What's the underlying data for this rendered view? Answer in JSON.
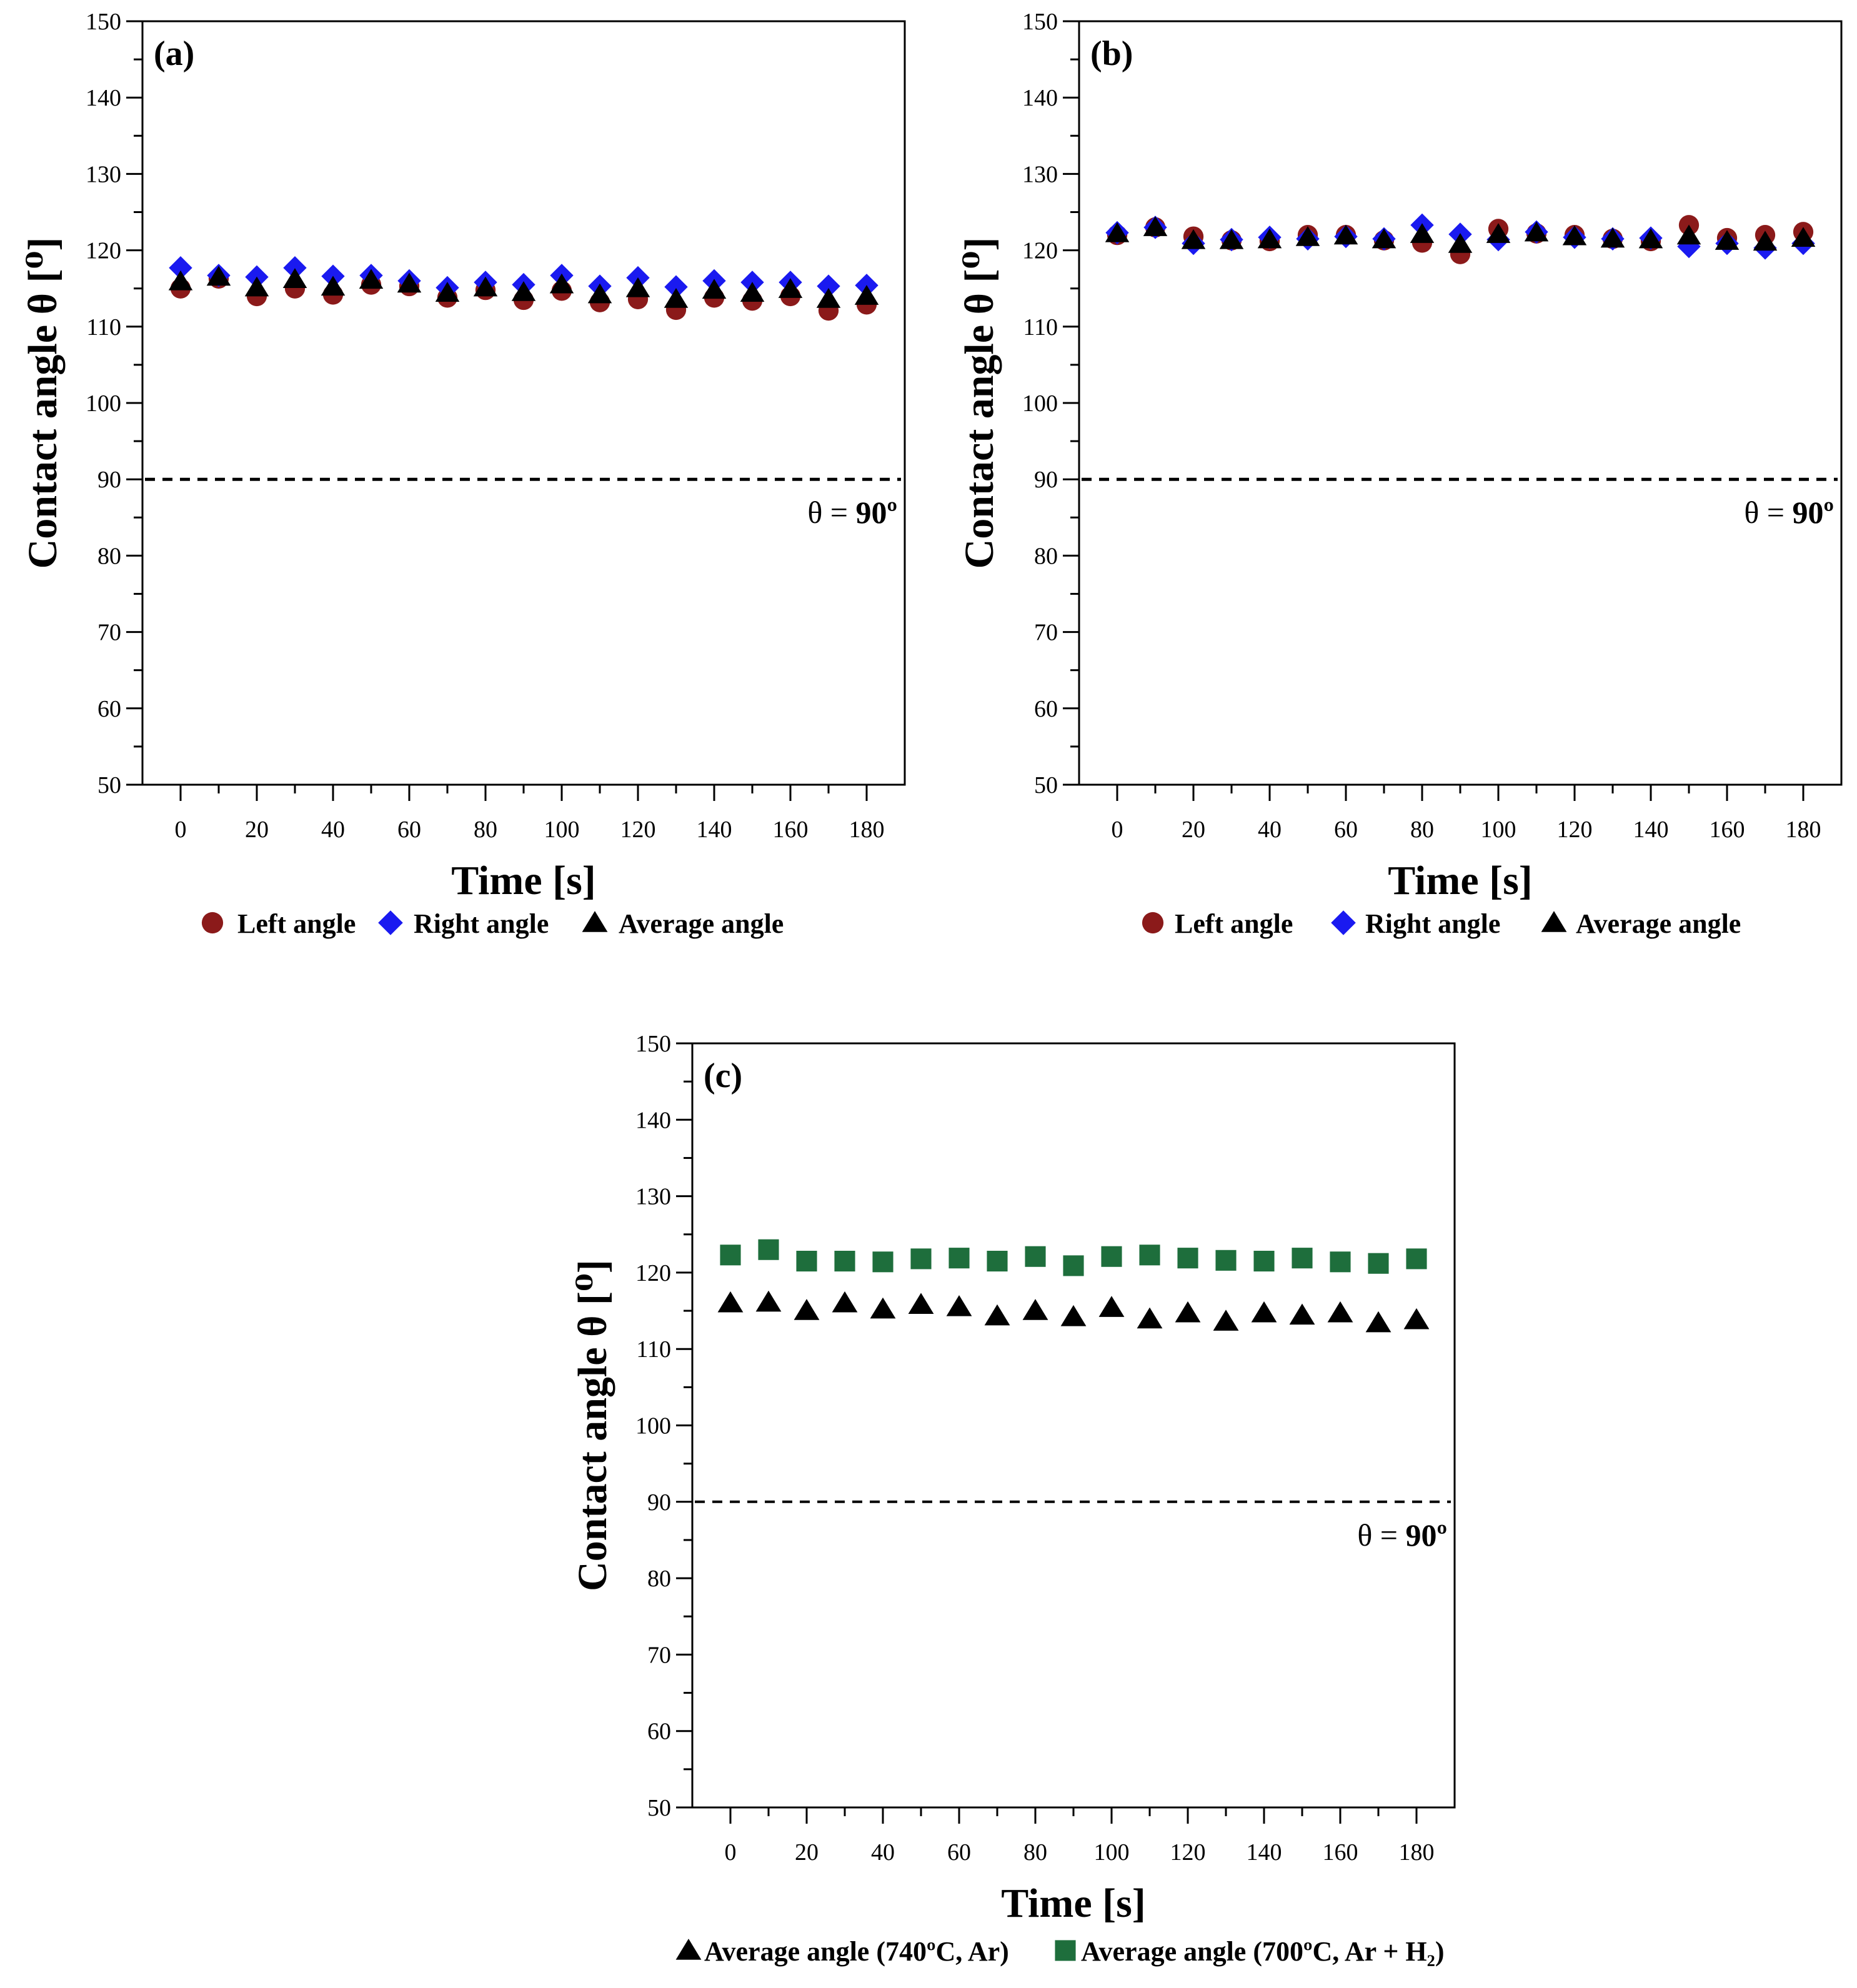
{
  "chart_data": [
    {
      "panel_label": "(a)",
      "type": "scatter",
      "xlabel": "Time [s]",
      "ylabel": "Contact angle θ [⁰]",
      "xlim": [
        -10,
        190
      ],
      "ylim": [
        50,
        150
      ],
      "xticks": [
        0,
        20,
        40,
        60,
        80,
        100,
        120,
        140,
        160,
        180
      ],
      "yticks": [
        50,
        60,
        70,
        80,
        90,
        100,
        110,
        120,
        130,
        140,
        150
      ],
      "reference_line": {
        "y": 90,
        "label_prefix": "θ = ",
        "label_value": "90º"
      },
      "x": [
        0,
        10,
        20,
        30,
        40,
        50,
        60,
        70,
        80,
        90,
        100,
        110,
        120,
        130,
        140,
        150,
        160,
        170,
        180
      ],
      "series": [
        {
          "name": "Left angle",
          "marker": "circle",
          "color": "#8B1A1A",
          "values": [
            115,
            116.3,
            114,
            115,
            114.2,
            115.5,
            115.3,
            113.8,
            114.8,
            113.5,
            114.7,
            113.2,
            113.6,
            112.2,
            113.8,
            113.4,
            114,
            112.1,
            112.9
          ]
        },
        {
          "name": "Right angle",
          "marker": "diamond",
          "color": "#1A1AF0",
          "values": [
            117.7,
            116.7,
            116.5,
            117.7,
            116.6,
            116.7,
            116,
            115.1,
            115.8,
            115.5,
            116.7,
            115.3,
            116.4,
            115.2,
            116,
            115.8,
            115.8,
            115.3,
            115.4
          ]
        },
        {
          "name": "Average angle",
          "marker": "triangle",
          "color": "#000000",
          "values": [
            115.9,
            116.5,
            115.1,
            116.2,
            115.2,
            116.1,
            115.6,
            114.4,
            115.1,
            114.5,
            115.5,
            114.2,
            115,
            113.6,
            114.8,
            114.4,
            114.9,
            113.6,
            114
          ]
        }
      ]
    },
    {
      "panel_label": "(b)",
      "type": "scatter",
      "xlabel": "Time [s]",
      "ylabel": "Contact angle θ [⁰]",
      "xlim": [
        -10,
        190
      ],
      "ylim": [
        50,
        150
      ],
      "xticks": [
        0,
        20,
        40,
        60,
        80,
        100,
        120,
        140,
        160,
        180
      ],
      "yticks": [
        50,
        60,
        70,
        80,
        90,
        100,
        110,
        120,
        130,
        140,
        150
      ],
      "reference_line": {
        "y": 90,
        "label_prefix": "θ = ",
        "label_value": "90º"
      },
      "x": [
        0,
        10,
        20,
        30,
        40,
        50,
        60,
        70,
        80,
        90,
        100,
        110,
        120,
        130,
        140,
        150,
        160,
        170,
        180
      ],
      "series": [
        {
          "name": "Left angle",
          "marker": "circle",
          "color": "#8B1A1A",
          "values": [
            122,
            123,
            121.8,
            121.3,
            121.2,
            122,
            122,
            121.3,
            121,
            119.5,
            122.8,
            122.2,
            122,
            121.5,
            121.2,
            123.3,
            121.6,
            122,
            122.4
          ]
        },
        {
          "name": "Right angle",
          "marker": "diamond",
          "color": "#1A1AF0",
          "values": [
            122.3,
            123,
            120.9,
            121.4,
            121.7,
            121.5,
            121.8,
            121.5,
            123.3,
            122.1,
            121.4,
            122.4,
            121.7,
            121.5,
            121.6,
            120.5,
            120.9,
            120.3,
            120.9
          ]
        },
        {
          "name": "Average angle",
          "marker": "triangle",
          "color": "#000000",
          "values": [
            122.2,
            123,
            121.3,
            121.3,
            121.4,
            121.7,
            121.9,
            121.4,
            122.1,
            120.8,
            122.1,
            122.3,
            121.8,
            121.5,
            121.4,
            121.9,
            121.2,
            121.1,
            121.6
          ]
        }
      ]
    },
    {
      "panel_label": "(c)",
      "type": "scatter",
      "xlabel": "Time [s]",
      "ylabel": "Contact angle θ [⁰]",
      "xlim": [
        -10,
        190
      ],
      "ylim": [
        50,
        150
      ],
      "xticks": [
        0,
        20,
        40,
        60,
        80,
        100,
        120,
        140,
        160,
        180
      ],
      "yticks": [
        50,
        60,
        70,
        80,
        90,
        100,
        110,
        120,
        130,
        140,
        150
      ],
      "reference_line": {
        "y": 90,
        "label_prefix": "θ = ",
        "label_value": "90º"
      },
      "x": [
        0,
        10,
        20,
        30,
        40,
        50,
        60,
        70,
        80,
        90,
        100,
        110,
        120,
        130,
        140,
        150,
        160,
        170,
        180
      ],
      "series": [
        {
          "name": "Average angle (740ºC, Ar)",
          "marker": "triangle",
          "color": "#000000",
          "values": [
            116,
            116.1,
            115,
            116,
            115.2,
            115.8,
            115.5,
            114.3,
            115,
            114.2,
            115.4,
            113.9,
            114.7,
            113.6,
            114.7,
            114.4,
            114.7,
            113.4,
            113.8
          ]
        },
        {
          "name": "Average angle (700ºC, Ar + H₂)",
          "marker": "square",
          "color": "#1E6E3C",
          "values": [
            122.3,
            123,
            121.5,
            121.5,
            121.4,
            121.8,
            121.9,
            121.5,
            122.1,
            120.9,
            122.1,
            122.3,
            121.9,
            121.6,
            121.5,
            121.9,
            121.4,
            121.2,
            121.8
          ]
        }
      ]
    }
  ]
}
